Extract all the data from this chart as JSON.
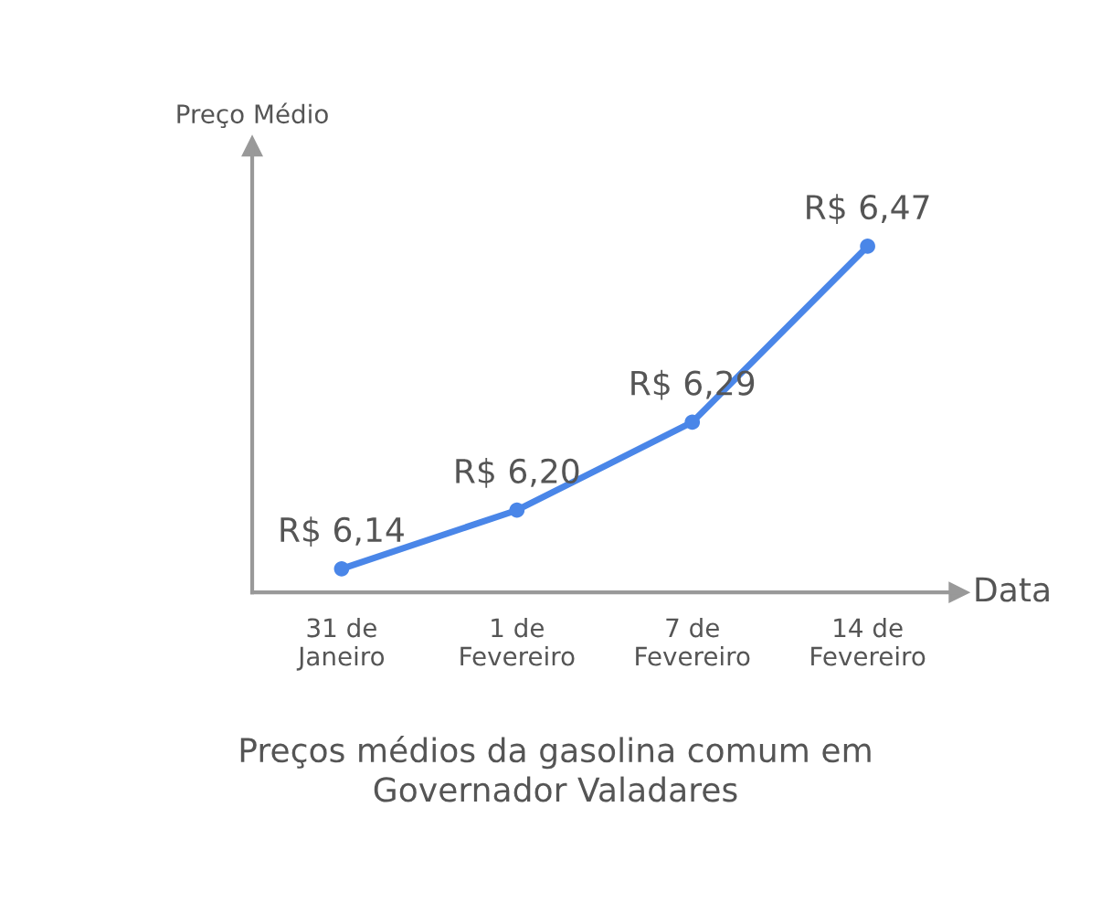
{
  "chart_data": {
    "type": "line",
    "title": "Preços médios da gasolina comum em\nGovernador Valadares",
    "xlabel": "Data",
    "ylabel": "Preço Médio",
    "categories": [
      "31 de\nJaneiro",
      "1 de\nFevereiro",
      "7 de\nFevereiro",
      "14 de\nFevereiro"
    ],
    "series": [
      {
        "color": "#4a86e8",
        "values": [
          6.14,
          6.2,
          6.29,
          6.47
        ],
        "value_labels": [
          "R$ 6,14",
          "R$ 6,20",
          "R$ 6,29",
          "R$ 6,47"
        ]
      }
    ],
    "marker": "circle",
    "line_style": "solid",
    "grid": false,
    "legend": false
  }
}
